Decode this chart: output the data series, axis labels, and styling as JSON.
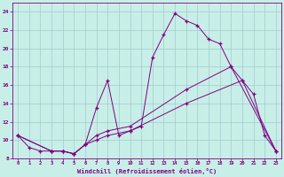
{
  "xlabel": "Windchill (Refroidissement éolien,°C)",
  "line_color": "#800080",
  "bg_color": "#c8eee8",
  "grid_color": "#a0cccc",
  "xlim": [
    -0.5,
    23.5
  ],
  "ylim": [
    8,
    25
  ],
  "xticks": [
    0,
    1,
    2,
    3,
    4,
    5,
    6,
    7,
    8,
    9,
    10,
    11,
    12,
    13,
    14,
    15,
    16,
    17,
    18,
    19,
    20,
    21,
    22,
    23
  ],
  "yticks": [
    8,
    10,
    12,
    14,
    16,
    18,
    20,
    22,
    24
  ],
  "line1_x": [
    0,
    1,
    2,
    3,
    4,
    5,
    6,
    7,
    8,
    9,
    10,
    11,
    12,
    13,
    14,
    15,
    16,
    17,
    18,
    19,
    20,
    21,
    22,
    23
  ],
  "line1_y": [
    10.5,
    9.2,
    8.8,
    8.8,
    8.8,
    8.5,
    9.5,
    13.5,
    16.5,
    10.5,
    11.0,
    11.5,
    19.0,
    21.5,
    23.8,
    23.0,
    22.5,
    21.0,
    20.5,
    18.0,
    16.5,
    15.0,
    10.5,
    8.8
  ],
  "line2_x": [
    0,
    3,
    4,
    5,
    6,
    7,
    8,
    10,
    15,
    20,
    23
  ],
  "line2_y": [
    10.5,
    8.8,
    8.8,
    8.5,
    9.5,
    10.0,
    10.5,
    11.0,
    14.0,
    16.5,
    8.8
  ],
  "line3_x": [
    0,
    3,
    4,
    5,
    6,
    7,
    8,
    10,
    15,
    19,
    23
  ],
  "line3_y": [
    10.5,
    8.8,
    8.8,
    8.5,
    9.5,
    10.5,
    11.0,
    11.5,
    15.5,
    18.0,
    8.8
  ]
}
